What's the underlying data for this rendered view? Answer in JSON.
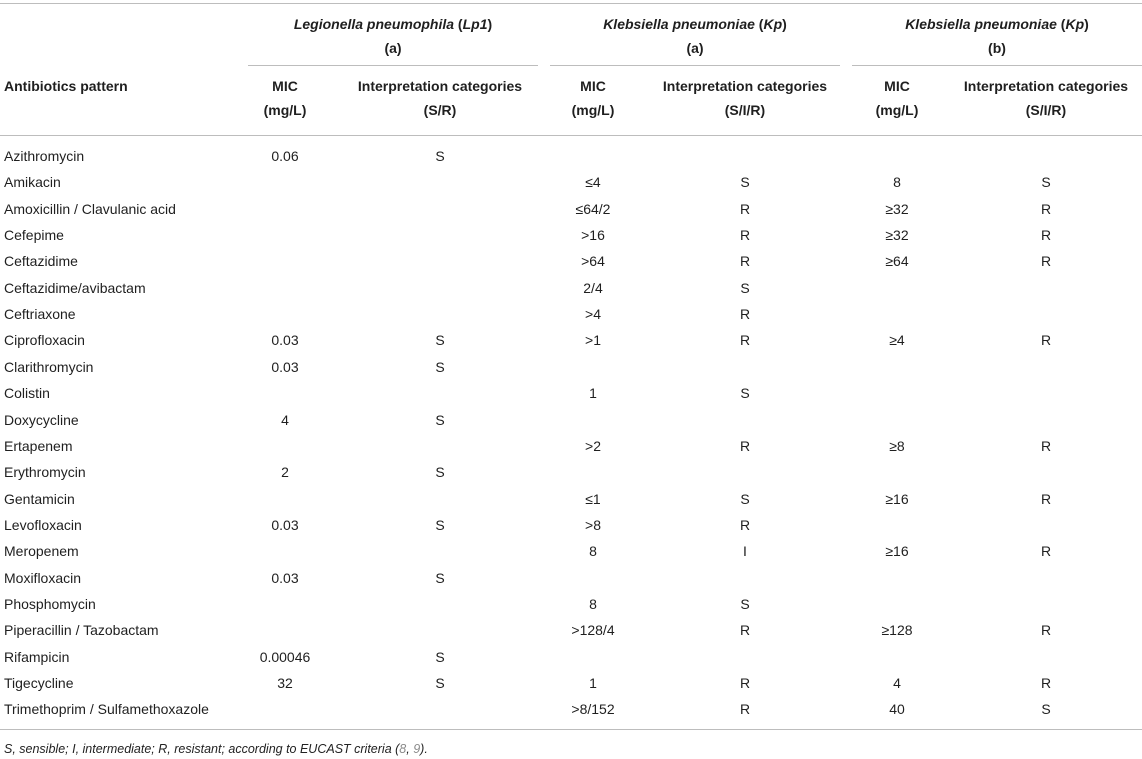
{
  "table": {
    "row_header_label": "Antibiotics pattern",
    "groups": [
      {
        "organism": "Legionella pneumophila",
        "abbr": "Lp1",
        "sub": "(a)",
        "mic_label_1": "MIC",
        "mic_label_2": "(mg/L)",
        "interp_label_1": "Interpretation categories",
        "interp_label_2": "(S/R)"
      },
      {
        "organism": "Klebsiella pneumoniae",
        "abbr": "Kp",
        "sub": "(a)",
        "mic_label_1": "MIC",
        "mic_label_2": "(mg/L)",
        "interp_label_1": "Interpretation categories",
        "interp_label_2": "(S/I/R)"
      },
      {
        "organism": "Klebsiella pneumoniae",
        "abbr": "Kp",
        "sub": "(b)",
        "mic_label_1": "MIC",
        "mic_label_2": "(mg/L)",
        "interp_label_1": "Interpretation categories",
        "interp_label_2": "(S/I/R)"
      }
    ],
    "rows": [
      [
        "Azithromycin",
        "0.06",
        "S",
        "",
        "",
        "",
        ""
      ],
      [
        "Amikacin",
        "",
        "",
        "≤4",
        "S",
        "8",
        "S"
      ],
      [
        "Amoxicillin / Clavulanic acid",
        "",
        "",
        "≤64/2",
        "R",
        "≥32",
        "R"
      ],
      [
        "Cefepime",
        "",
        "",
        ">16",
        "R",
        "≥32",
        "R"
      ],
      [
        "Ceftazidime",
        "",
        "",
        ">64",
        "R",
        "≥64",
        "R"
      ],
      [
        "Ceftazidime/avibactam",
        "",
        "",
        "2/4",
        "S",
        "",
        ""
      ],
      [
        "Ceftriaxone",
        "",
        "",
        ">4",
        "R",
        "",
        ""
      ],
      [
        "Ciprofloxacin",
        "0.03",
        "S",
        ">1",
        "R",
        "≥4",
        "R"
      ],
      [
        "Clarithromycin",
        "0.03",
        "S",
        "",
        "",
        "",
        ""
      ],
      [
        "Colistin",
        "",
        "",
        "1",
        "S",
        "",
        ""
      ],
      [
        "Doxycycline",
        "4",
        "S",
        "",
        "",
        "",
        ""
      ],
      [
        "Ertapenem",
        "",
        "",
        ">2",
        "R",
        "≥8",
        "R"
      ],
      [
        "Erythromycin",
        "2",
        "S",
        "",
        "",
        "",
        ""
      ],
      [
        "Gentamicin",
        "",
        "",
        "≤1",
        "S",
        "≥16",
        "R"
      ],
      [
        "Levofloxacin",
        "0.03",
        "S",
        ">8",
        "R",
        "",
        ""
      ],
      [
        "Meropenem",
        "",
        "",
        "8",
        "I",
        "≥16",
        "R"
      ],
      [
        "Moxifloxacin",
        "0.03",
        "S",
        "",
        "",
        "",
        ""
      ],
      [
        "Phosphomycin",
        "",
        "",
        "8",
        "S",
        "",
        ""
      ],
      [
        "Piperacillin / Tazobactam",
        "",
        "",
        ">128/4",
        "R",
        "≥128",
        "R"
      ],
      [
        "Rifampicin",
        "0.00046",
        "S",
        "",
        "",
        "",
        ""
      ],
      [
        "Tigecycline",
        "32",
        "S",
        "1",
        "R",
        "4",
        "R"
      ],
      [
        "Trimethoprim / Sulfamethoxazole",
        "",
        "",
        ">8/152",
        "R",
        "40",
        "S"
      ]
    ]
  },
  "footnote": {
    "text": "S, sensible; I, intermediate; R, resistant; according to EUCAST criteria (",
    "ref1": "8",
    "sep": ", ",
    "ref2": "9",
    "end": ")."
  }
}
